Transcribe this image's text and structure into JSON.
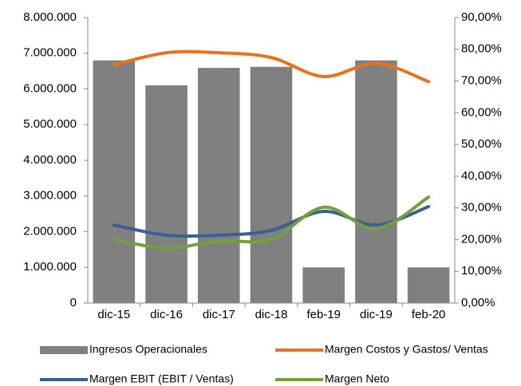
{
  "chart_data": {
    "type": "combo",
    "categories": [
      "dic-15",
      "dic-16",
      "dic-17",
      "dic-18",
      "feb-19",
      "dic-19",
      "feb-20"
    ],
    "ylim": [
      0,
      8000000
    ],
    "yticks": [
      0,
      {
        "value": 1000000,
        "label": "1.000.000"
      },
      {
        "value": 2000000,
        "label": "2.000.000"
      },
      {
        "value": 3000000,
        "label": "3.000.000"
      },
      {
        "value": 4000000,
        "label": "4.000.000"
      },
      {
        "value": 5000000,
        "label": "5.000.000"
      },
      {
        "value": 6000000,
        "label": "6.000.000"
      },
      {
        "value": 7000000,
        "label": "7.000.000"
      },
      {
        "value": 8000000,
        "label": "8.000.000"
      }
    ],
    "y2lim": [
      0,
      90
    ],
    "y2ticks": [
      {
        "value": 0,
        "label": "0,00%"
      },
      {
        "value": 10,
        "label": "10,00%"
      },
      {
        "value": 20,
        "label": "20,00%"
      },
      {
        "value": 30,
        "label": "30,00%"
      },
      {
        "value": 40,
        "label": "40,00%"
      },
      {
        "value": 50,
        "label": "50,00%"
      },
      {
        "value": 60,
        "label": "60,00%"
      },
      {
        "value": 70,
        "label": "70,00%"
      },
      {
        "value": 80,
        "label": "80,00%"
      },
      {
        "value": 90,
        "label": "90,00%"
      }
    ],
    "legend": "bottom",
    "series": [
      {
        "name": "Ingresos Operacionales",
        "type": "bar",
        "color": "#808080",
        "values": [
          6800000,
          6100000,
          6590000,
          6620000,
          1000000,
          6800000,
          1000000
        ]
      },
      {
        "name": "Margen Costos y Gastos/ Ventas",
        "type": "line",
        "axis": "y2",
        "color": "#e8731c",
        "values": [
          75.1,
          78.9,
          78.9,
          77.4,
          71.4,
          75.6,
          69.8
        ]
      },
      {
        "name": "Margen EBIT (EBIT / Ventas)",
        "type": "line",
        "axis": "y2",
        "color": "#3a5f94",
        "values": [
          24.6,
          21.4,
          21.4,
          22.9,
          28.9,
          24.6,
          30.4
        ]
      },
      {
        "name": "Margen Neto",
        "type": "line",
        "axis": "y2",
        "color": "#74a03c",
        "values": [
          20.1,
          17.3,
          19.6,
          20.1,
          30.2,
          23.4,
          33.4
        ]
      }
    ]
  }
}
